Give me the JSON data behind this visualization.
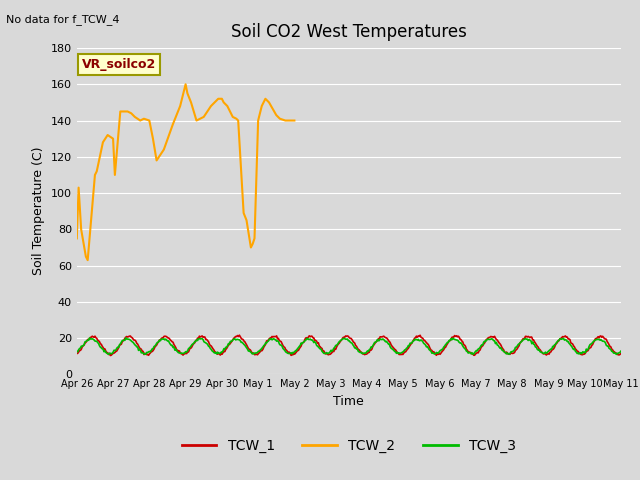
{
  "title": "Soil CO2 West Temperatures",
  "xlabel": "Time",
  "ylabel": "Soil Temperature (C)",
  "no_data_note": "No data for f_TCW_4",
  "vr_label": "VR_soilco2",
  "ylim": [
    0,
    180
  ],
  "legend_entries": [
    "TCW_1",
    "TCW_2",
    "TCW_3"
  ],
  "line_colors": [
    "#cc0000",
    "#ffa500",
    "#00cc00"
  ],
  "tcw2_x": [
    0.0,
    0.05,
    0.12,
    0.25,
    0.3,
    0.5,
    0.55,
    0.72,
    0.85,
    1.0,
    1.05,
    1.2,
    1.4,
    1.5,
    1.6,
    1.75,
    1.85,
    2.0,
    2.1,
    2.2,
    2.4,
    2.65,
    2.75,
    2.85,
    3.0,
    3.05,
    3.15,
    3.3,
    3.5,
    3.7,
    3.9,
    4.0,
    4.05,
    4.15,
    4.3,
    4.4,
    4.45,
    4.6,
    4.68,
    4.72,
    4.8,
    4.85,
    4.9,
    5.0,
    5.1,
    5.2,
    5.3,
    5.5,
    5.6,
    5.75,
    6.0
  ],
  "tcw2_y": [
    75,
    103,
    80,
    65,
    63,
    110,
    112,
    128,
    132,
    130,
    110,
    145,
    145,
    144,
    142,
    140,
    141,
    140,
    130,
    118,
    124,
    138,
    143,
    148,
    160,
    155,
    150,
    140,
    142,
    148,
    152,
    152,
    150,
    148,
    142,
    141,
    140,
    89,
    85,
    80,
    70,
    72,
    75,
    140,
    148,
    152,
    150,
    143,
    141,
    140,
    140
  ],
  "x_tick_labels": [
    "Apr 26",
    "Apr 27",
    "Apr 28",
    "Apr 29",
    "Apr 30",
    "May 1",
    "May 2",
    "May 3",
    "May 4",
    "May 5",
    "May 6",
    "May 7",
    "May 8",
    "May 9",
    "May 10",
    "May 11"
  ],
  "x_tick_positions": [
    0,
    1,
    2,
    3,
    4,
    5,
    6,
    7,
    8,
    9,
    10,
    11,
    12,
    13,
    14,
    15
  ],
  "xlim": [
    0,
    15
  ],
  "tcw1_seed": 42,
  "tcw1_amp": 5.0,
  "tcw1_base": 16.0,
  "tcw3_amp": 4.0,
  "tcw3_base": 15.5
}
